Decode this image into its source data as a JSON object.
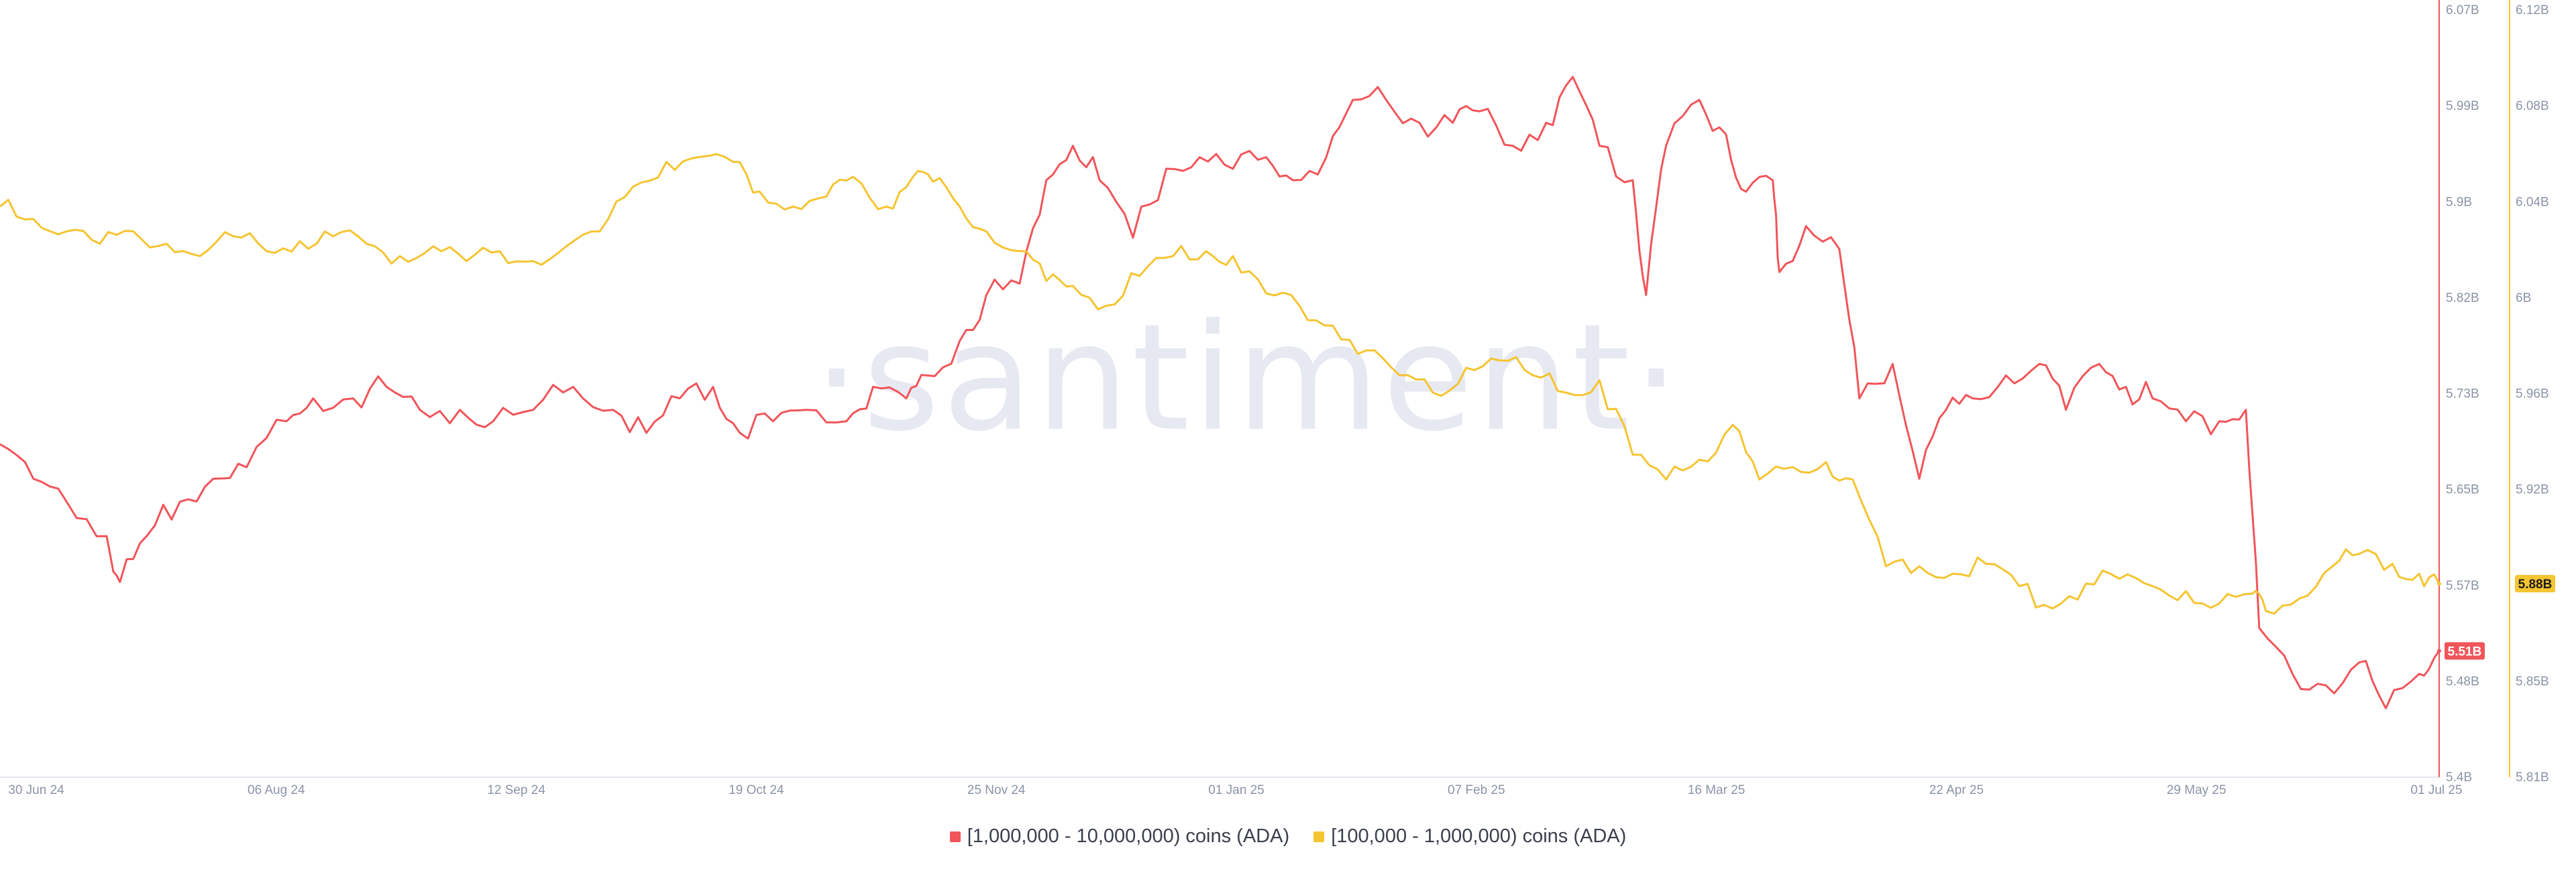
{
  "watermark": "·santiment·",
  "colors": {
    "series1": "#f0555a",
    "series2": "#f5c431",
    "axis_text": "#8a93a8"
  },
  "chart_data": {
    "type": "line",
    "title": "",
    "x_tick_labels": [
      "30 Jun 24",
      "06 Aug 24",
      "12 Sep 24",
      "19 Oct 24",
      "25 Nov 24",
      "01 Jan 25",
      "07 Feb 25",
      "16 Mar 25",
      "22 Apr 25",
      "29 May 25",
      "01 Jul 25"
    ],
    "x_range": [
      "2024-06-30",
      "2025-07-01"
    ],
    "y_axes": {
      "left": {
        "ticks": [
          "5.4B",
          "5.48B",
          "5.57B",
          "5.65B",
          "5.73B",
          "5.82B",
          "5.9B",
          "5.99B",
          "6.07B"
        ],
        "range": [
          5.4,
          6.07
        ],
        "unit": "B"
      },
      "right": {
        "ticks": [
          "5.81B",
          "5.85B",
          "5.88B",
          "5.92B",
          "5.96B",
          "6B",
          "6.04B",
          "6.08B",
          "6.12B"
        ],
        "range": [
          5.81,
          6.12
        ],
        "unit": "B"
      }
    },
    "last_value_badges": {
      "series1": "5.51B",
      "series2": "5.88B"
    },
    "legend_position": "bottom",
    "grid": false,
    "series": [
      {
        "name": "[1,000,000 - 10,000,000) coins (ADA)",
        "axis": "left",
        "color": "#f0555a",
        "points": [
          [
            "2024-06-30",
            5.69
          ],
          [
            "2024-07-05",
            5.66
          ],
          [
            "2024-07-10",
            5.64
          ],
          [
            "2024-07-16",
            5.61
          ],
          [
            "2024-07-18",
            5.57
          ],
          [
            "2024-07-22",
            5.61
          ],
          [
            "2024-07-27",
            5.64
          ],
          [
            "2024-08-01",
            5.66
          ],
          [
            "2024-08-06",
            5.67
          ],
          [
            "2024-08-12",
            5.71
          ],
          [
            "2024-08-16",
            5.73
          ],
          [
            "2024-08-22",
            5.73
          ],
          [
            "2024-08-27",
            5.74
          ],
          [
            "2024-09-01",
            5.72
          ],
          [
            "2024-09-07",
            5.72
          ],
          [
            "2024-09-12",
            5.71
          ],
          [
            "2024-09-18",
            5.72
          ],
          [
            "2024-09-24",
            5.74
          ],
          [
            "2024-09-30",
            5.72
          ],
          [
            "2024-10-05",
            5.7
          ],
          [
            "2024-10-10",
            5.73
          ],
          [
            "2024-10-15",
            5.74
          ],
          [
            "2024-10-19",
            5.7
          ],
          [
            "2024-10-24",
            5.71
          ],
          [
            "2024-10-29",
            5.72
          ],
          [
            "2024-11-04",
            5.71
          ],
          [
            "2024-11-08",
            5.74
          ],
          [
            "2024-11-13",
            5.73
          ],
          [
            "2024-11-16",
            5.75
          ],
          [
            "2024-11-21",
            5.78
          ],
          [
            "2024-11-25",
            5.82
          ],
          [
            "2024-11-30",
            5.83
          ],
          [
            "2024-12-04",
            5.92
          ],
          [
            "2024-12-08",
            5.95
          ],
          [
            "2024-12-12",
            5.92
          ],
          [
            "2024-12-17",
            5.87
          ],
          [
            "2024-12-22",
            5.93
          ],
          [
            "2024-12-27",
            5.94
          ],
          [
            "2025-01-01",
            5.93
          ],
          [
            "2025-01-06",
            5.94
          ],
          [
            "2025-01-10",
            5.92
          ],
          [
            "2025-01-15",
            5.94
          ],
          [
            "2025-01-19",
            5.99
          ],
          [
            "2025-01-24",
            5.99
          ],
          [
            "2025-01-29",
            5.97
          ],
          [
            "2025-02-03",
            5.97
          ],
          [
            "2025-02-07",
            5.98
          ],
          [
            "2025-02-12",
            5.95
          ],
          [
            "2025-02-17",
            5.97
          ],
          [
            "2025-02-21",
            6.01
          ],
          [
            "2025-02-25",
            5.95
          ],
          [
            "2025-03-02",
            5.92
          ],
          [
            "2025-03-04",
            5.82
          ],
          [
            "2025-03-07",
            5.95
          ],
          [
            "2025-03-12",
            5.99
          ],
          [
            "2025-03-16",
            5.96
          ],
          [
            "2025-03-19",
            5.91
          ],
          [
            "2025-03-23",
            5.92
          ],
          [
            "2025-03-24",
            5.84
          ],
          [
            "2025-03-28",
            5.88
          ],
          [
            "2025-04-02",
            5.86
          ],
          [
            "2025-04-05",
            5.73
          ],
          [
            "2025-04-10",
            5.76
          ],
          [
            "2025-04-14",
            5.66
          ],
          [
            "2025-04-18",
            5.72
          ],
          [
            "2025-04-22",
            5.73
          ],
          [
            "2025-04-27",
            5.75
          ],
          [
            "2025-05-02",
            5.76
          ],
          [
            "2025-05-06",
            5.72
          ],
          [
            "2025-05-11",
            5.76
          ],
          [
            "2025-05-15",
            5.74
          ],
          [
            "2025-05-19",
            5.73
          ],
          [
            "2025-05-24",
            5.71
          ],
          [
            "2025-05-29",
            5.71
          ],
          [
            "2025-06-02",
            5.72
          ],
          [
            "2025-06-04",
            5.53
          ],
          [
            "2025-06-09",
            5.49
          ],
          [
            "2025-06-14",
            5.48
          ],
          [
            "2025-06-19",
            5.5
          ],
          [
            "2025-06-23",
            5.46
          ],
          [
            "2025-06-28",
            5.49
          ],
          [
            "2025-07-01",
            5.51
          ]
        ]
      },
      {
        "name": "[100,000  - 1,000,000) coins (ADA)",
        "axis": "right",
        "color": "#f5c431",
        "points": [
          [
            "2024-06-30",
            6.04
          ],
          [
            "2024-07-05",
            6.035
          ],
          [
            "2024-07-10",
            6.03
          ],
          [
            "2024-07-15",
            6.025
          ],
          [
            "2024-07-20",
            6.03
          ],
          [
            "2024-07-25",
            6.025
          ],
          [
            "2024-07-30",
            6.02
          ],
          [
            "2024-08-04",
            6.028
          ],
          [
            "2024-08-09",
            6.022
          ],
          [
            "2024-08-14",
            6.026
          ],
          [
            "2024-08-19",
            6.028
          ],
          [
            "2024-08-24",
            6.025
          ],
          [
            "2024-08-29",
            6.02
          ],
          [
            "2024-09-03",
            6.024
          ],
          [
            "2024-09-08",
            6.018
          ],
          [
            "2024-09-13",
            6.022
          ],
          [
            "2024-09-18",
            6.018
          ],
          [
            "2024-09-23",
            6.024
          ],
          [
            "2024-09-28",
            6.03
          ],
          [
            "2024-10-03",
            6.048
          ],
          [
            "2024-10-08",
            6.058
          ],
          [
            "2024-10-13",
            6.06
          ],
          [
            "2024-10-18",
            6.058
          ],
          [
            "2024-10-22",
            6.046
          ],
          [
            "2024-10-27",
            6.04
          ],
          [
            "2024-11-01",
            6.044
          ],
          [
            "2024-11-05",
            6.052
          ],
          [
            "2024-11-10",
            6.04
          ],
          [
            "2024-11-14",
            6.052
          ],
          [
            "2024-11-17",
            6.05
          ],
          [
            "2024-11-21",
            6.04
          ],
          [
            "2024-11-25",
            6.03
          ],
          [
            "2024-11-30",
            6.022
          ],
          [
            "2024-12-04",
            6.01
          ],
          [
            "2024-12-08",
            6.008
          ],
          [
            "2024-12-13",
            6.0
          ],
          [
            "2024-12-18",
            6.012
          ],
          [
            "2024-12-23",
            6.02
          ],
          [
            "2024-12-28",
            6.022
          ],
          [
            "2025-01-01",
            6.02
          ],
          [
            "2025-01-06",
            6.005
          ],
          [
            "2025-01-11",
            6.0
          ],
          [
            "2025-01-16",
            5.992
          ],
          [
            "2025-01-21",
            5.982
          ],
          [
            "2025-01-26",
            5.972
          ],
          [
            "2025-01-31",
            5.965
          ],
          [
            "2025-02-05",
            5.975
          ],
          [
            "2025-02-10",
            5.978
          ],
          [
            "2025-02-15",
            5.972
          ],
          [
            "2025-02-20",
            5.965
          ],
          [
            "2025-02-25",
            5.97
          ],
          [
            "2025-03-02",
            5.94
          ],
          [
            "2025-03-07",
            5.93
          ],
          [
            "2025-03-12",
            5.938
          ],
          [
            "2025-03-17",
            5.952
          ],
          [
            "2025-03-21",
            5.93
          ],
          [
            "2025-03-26",
            5.935
          ],
          [
            "2025-03-31",
            5.937
          ],
          [
            "2025-04-04",
            5.93
          ],
          [
            "2025-04-09",
            5.895
          ],
          [
            "2025-04-14",
            5.895
          ],
          [
            "2025-04-19",
            5.892
          ],
          [
            "2025-04-24",
            5.896
          ],
          [
            "2025-04-29",
            5.887
          ],
          [
            "2025-05-04",
            5.878
          ],
          [
            "2025-05-09",
            5.888
          ],
          [
            "2025-05-14",
            5.89
          ],
          [
            "2025-05-19",
            5.887
          ],
          [
            "2025-05-24",
            5.885
          ],
          [
            "2025-05-29",
            5.88
          ],
          [
            "2025-06-03",
            5.884
          ],
          [
            "2025-06-05",
            5.877
          ],
          [
            "2025-06-10",
            5.882
          ],
          [
            "2025-06-15",
            5.895
          ],
          [
            "2025-06-19",
            5.9
          ],
          [
            "2025-06-24",
            5.896
          ],
          [
            "2025-06-28",
            5.892
          ],
          [
            "2025-07-01",
            5.888
          ]
        ]
      }
    ]
  }
}
